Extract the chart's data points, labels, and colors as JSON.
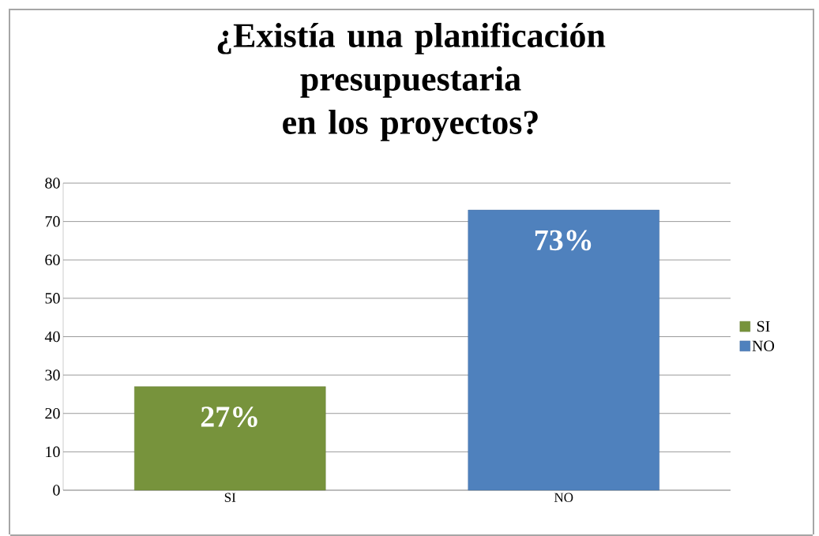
{
  "chart_data": {
    "type": "bar",
    "title": "¿Existía una planificación\npresupuestaria\nen los proyectos?",
    "categories": [
      "SI",
      "NO"
    ],
    "series": [
      {
        "name": "SI",
        "color": "#77933c",
        "values": [
          27,
          null
        ],
        "value_labels": [
          "27%",
          null
        ]
      },
      {
        "name": "NO",
        "color": "#4f81bd",
        "values": [
          null,
          73
        ],
        "value_labels": [
          null,
          "73%"
        ]
      }
    ],
    "ylim": [
      0,
      80
    ],
    "yticks": [
      0,
      10,
      20,
      30,
      40,
      50,
      60,
      70,
      80
    ],
    "grid": "y",
    "legend": "right"
  }
}
